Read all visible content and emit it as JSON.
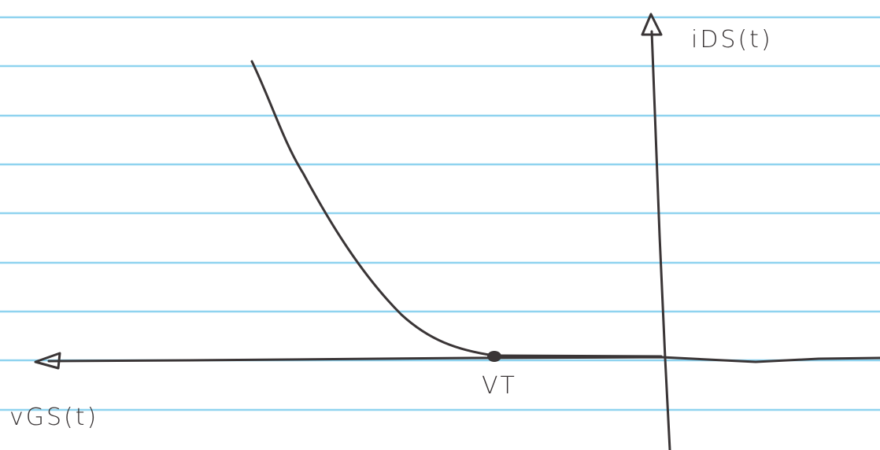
{
  "y_axis": {
    "label": "iDS(t)"
  },
  "x_axis": {
    "label": "vGS(t)"
  },
  "threshold": {
    "label": "VT"
  }
}
